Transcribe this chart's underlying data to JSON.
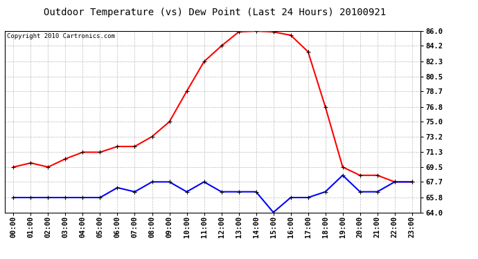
{
  "title": "Outdoor Temperature (vs) Dew Point (Last 24 Hours) 20100921",
  "copyright_text": "Copyright 2010 Cartronics.com",
  "x_labels": [
    "00:00",
    "01:00",
    "02:00",
    "03:00",
    "04:00",
    "05:00",
    "06:00",
    "07:00",
    "08:00",
    "09:00",
    "10:00",
    "11:00",
    "12:00",
    "13:00",
    "14:00",
    "15:00",
    "16:00",
    "17:00",
    "18:00",
    "19:00",
    "20:00",
    "21:00",
    "22:00",
    "23:00"
  ],
  "temp_data": [
    69.5,
    70.0,
    69.5,
    70.5,
    71.3,
    71.3,
    72.0,
    72.0,
    73.2,
    75.0,
    78.7,
    82.3,
    84.2,
    85.9,
    86.0,
    85.9,
    85.5,
    83.5,
    76.8,
    69.5,
    68.5,
    68.5,
    67.7,
    67.7
  ],
  "dew_data": [
    65.8,
    65.8,
    65.8,
    65.8,
    65.8,
    65.8,
    67.0,
    66.5,
    67.7,
    67.7,
    66.5,
    67.7,
    66.5,
    66.5,
    66.5,
    64.0,
    65.8,
    65.8,
    66.5,
    68.5,
    66.5,
    66.5,
    67.7,
    67.7
  ],
  "temp_color": "#ff0000",
  "dew_color": "#0000ff",
  "ylim_min": 64.0,
  "ylim_max": 86.0,
  "yticks": [
    64.0,
    65.8,
    67.7,
    69.5,
    71.3,
    73.2,
    75.0,
    76.8,
    78.7,
    80.5,
    82.3,
    84.2,
    86.0
  ],
  "ytick_labels": [
    "64.0",
    "65.8",
    "67.7",
    "69.5",
    "71.3",
    "73.2",
    "75.0",
    "76.8",
    "78.7",
    "80.5",
    "82.3",
    "84.2",
    "86.0"
  ],
  "background_color": "#ffffff",
  "grid_color": "#bbbbbb",
  "title_fontsize": 10,
  "copyright_fontsize": 6.5,
  "tick_fontsize": 7.5,
  "line_width": 1.5,
  "marker_size": 4
}
